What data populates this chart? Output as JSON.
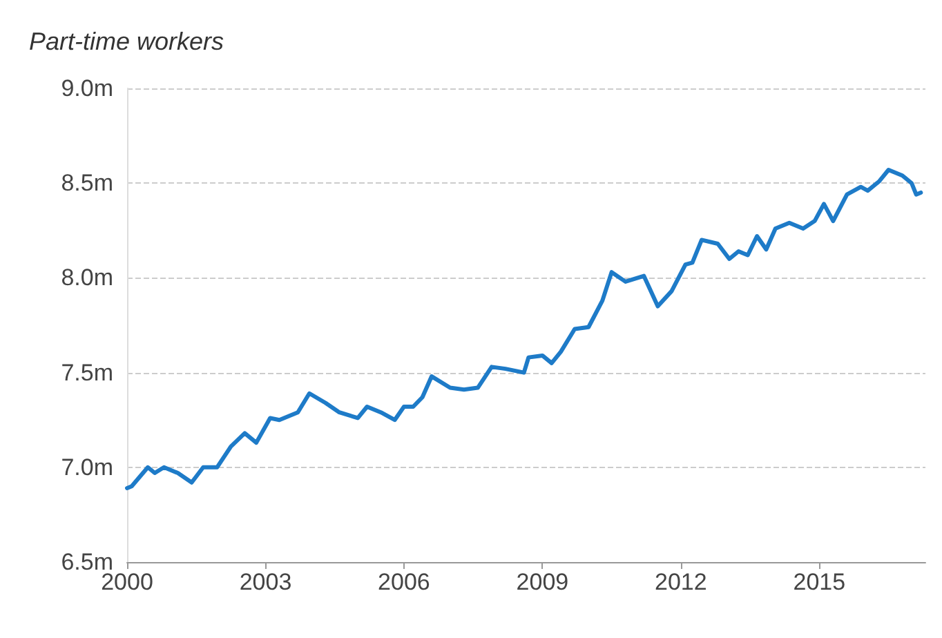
{
  "chart_data": {
    "type": "line",
    "title": "Part-time workers",
    "x": [
      2000.0,
      2000.1,
      2000.45,
      2000.6,
      2000.8,
      2001.1,
      2001.4,
      2001.65,
      2001.95,
      2002.25,
      2002.55,
      2002.8,
      2003.1,
      2003.3,
      2003.7,
      2003.95,
      2004.3,
      2004.6,
      2005.0,
      2005.2,
      2005.5,
      2005.8,
      2006.0,
      2006.2,
      2006.4,
      2006.6,
      2007.0,
      2007.3,
      2007.6,
      2007.9,
      2008.2,
      2008.6,
      2008.7,
      2009.0,
      2009.2,
      2009.4,
      2009.7,
      2010.0,
      2010.3,
      2010.5,
      2010.8,
      2011.2,
      2011.5,
      2011.8,
      2012.1,
      2012.25,
      2012.45,
      2012.8,
      2013.05,
      2013.25,
      2013.45,
      2013.65,
      2013.85,
      2014.05,
      2014.35,
      2014.65,
      2014.9,
      2015.1,
      2015.3,
      2015.6,
      2015.9,
      2016.05,
      2016.3,
      2016.5,
      2016.8,
      2017.0,
      2017.1,
      2017.2
    ],
    "series": [
      {
        "color": "#1e7bc8",
        "values": [
          6.89,
          6.9,
          7.0,
          6.97,
          7.0,
          6.97,
          6.92,
          7.0,
          7.0,
          7.11,
          7.18,
          7.13,
          7.26,
          7.25,
          7.29,
          7.39,
          7.34,
          7.29,
          7.26,
          7.32,
          7.29,
          7.25,
          7.32,
          7.32,
          7.37,
          7.48,
          7.42,
          7.41,
          7.42,
          7.53,
          7.52,
          7.5,
          7.58,
          7.59,
          7.55,
          7.61,
          7.73,
          7.74,
          7.88,
          8.03,
          7.98,
          8.01,
          7.85,
          7.93,
          8.07,
          8.08,
          8.2,
          8.18,
          8.1,
          8.14,
          8.12,
          8.22,
          8.15,
          8.26,
          8.29,
          8.26,
          8.3,
          8.39,
          8.3,
          8.44,
          8.48,
          8.46,
          8.51,
          8.57,
          8.54,
          8.5,
          8.44,
          8.45
        ]
      }
    ],
    "xlim": [
      2000,
      2017.3
    ],
    "xticks": [
      2000,
      2003,
      2006,
      2009,
      2012,
      2015
    ],
    "ylim": [
      6.5,
      9.0
    ],
    "yticks": [
      {
        "value": 6.5,
        "label": "6.5m"
      },
      {
        "value": 7.0,
        "label": "7.0m"
      },
      {
        "value": 7.5,
        "label": "7.5m"
      },
      {
        "value": 8.0,
        "label": "8.0m"
      },
      {
        "value": 8.5,
        "label": "8.5m"
      },
      {
        "value": 9.0,
        "label": "9.0m"
      }
    ],
    "grid": "y",
    "marker": "none",
    "line_style": "solid"
  }
}
